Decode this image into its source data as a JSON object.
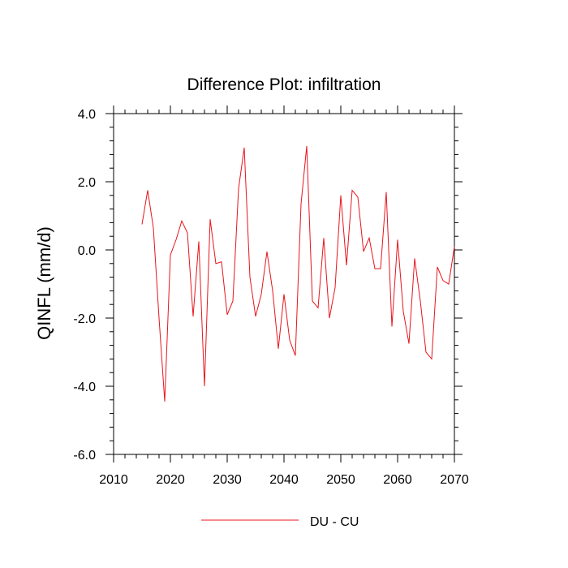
{
  "chart_data": {
    "type": "line",
    "title": "Difference Plot: infiltration",
    "xlabel": "",
    "ylabel": "QINFL  (mm/d)",
    "xlim": [
      2010,
      2070
    ],
    "ylim": [
      -6,
      4
    ],
    "xticks": [
      2010,
      2020,
      2030,
      2040,
      2050,
      2060,
      2070
    ],
    "xtick_labels": [
      "2010",
      "2020",
      "2030",
      "2040",
      "2050",
      "2060",
      "2070"
    ],
    "yticks": [
      -6,
      -4,
      -2,
      0,
      2,
      4
    ],
    "ytick_labels": [
      "-6.0",
      "-4.0",
      "-2.0",
      "0.0",
      "2.0",
      "4.0"
    ],
    "grid": false,
    "legend_position": "bottom",
    "series": [
      {
        "name": "DU - CU",
        "color": "#e8141c",
        "x": [
          2015,
          2016,
          2017,
          2018,
          2019,
          2020,
          2021,
          2022,
          2023,
          2024,
          2025,
          2026,
          2027,
          2028,
          2029,
          2030,
          2031,
          2032,
          2033,
          2034,
          2035,
          2036,
          2037,
          2038,
          2039,
          2040,
          2041,
          2042,
          2043,
          2044,
          2045,
          2046,
          2047,
          2048,
          2049,
          2050,
          2051,
          2052,
          2053,
          2054,
          2055,
          2056,
          2057,
          2058,
          2059,
          2060,
          2061,
          2062,
          2063,
          2064,
          2065,
          2066,
          2067,
          2068,
          2069,
          2070
        ],
        "values": [
          0.75,
          1.75,
          0.65,
          -2.0,
          -4.45,
          -0.15,
          0.3,
          0.85,
          0.5,
          -1.95,
          0.25,
          -4.0,
          0.9,
          -0.4,
          -0.35,
          -1.9,
          -1.5,
          1.8,
          3.0,
          -0.8,
          -1.95,
          -1.3,
          -0.05,
          -1.2,
          -2.9,
          -1.3,
          -2.65,
          -3.1,
          1.35,
          3.05,
          -1.5,
          -1.7,
          0.35,
          -2.0,
          -1.1,
          1.6,
          -0.45,
          1.75,
          1.55,
          -0.05,
          0.35,
          -0.55,
          -0.55,
          1.7,
          -2.25,
          0.3,
          -1.8,
          -2.75,
          -0.25,
          -1.5,
          -3.0,
          -3.2,
          -0.5,
          -0.9,
          -1.0,
          0.1
        ]
      }
    ]
  }
}
